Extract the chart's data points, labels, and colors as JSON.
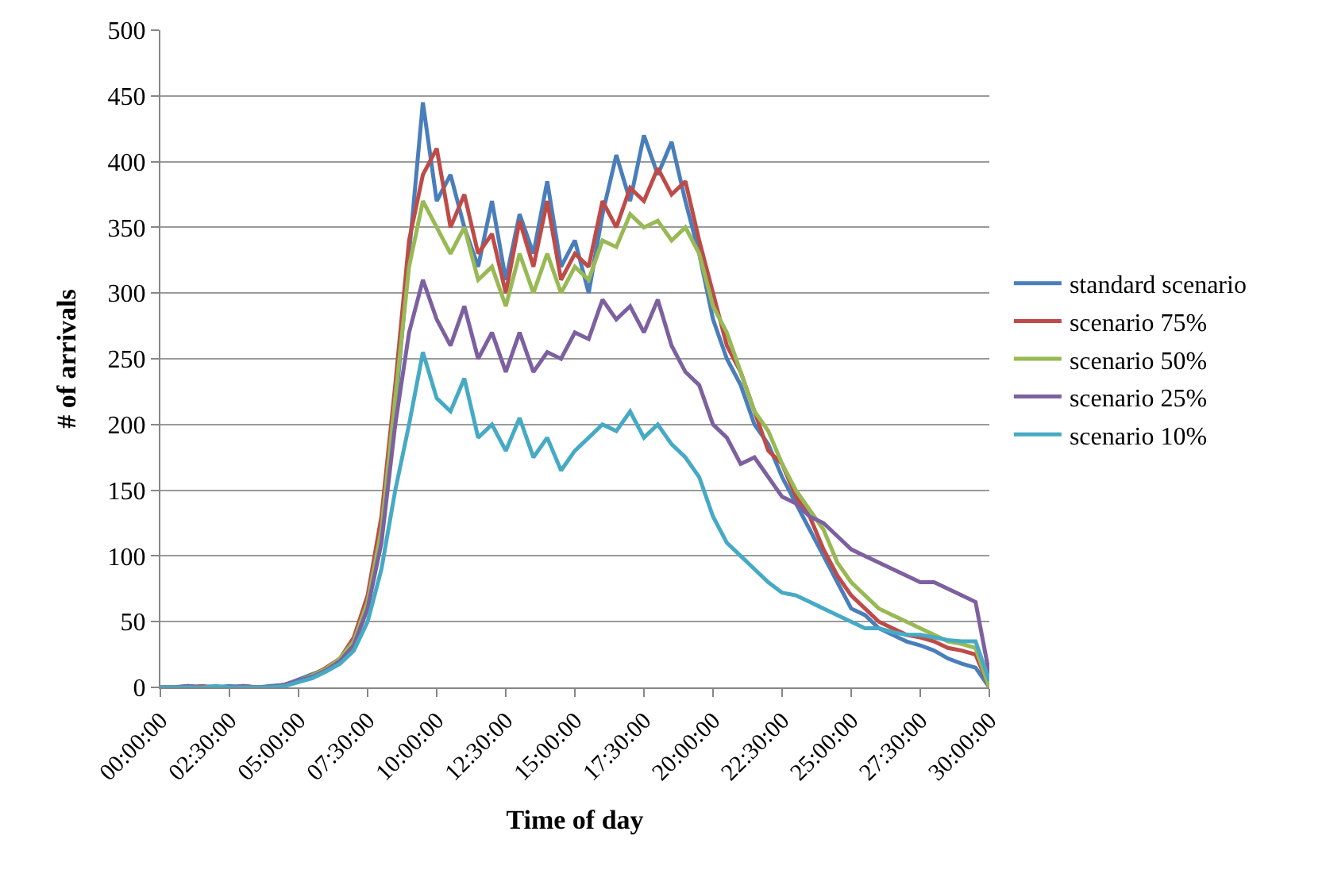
{
  "chart_data": {
    "type": "line",
    "xlabel": "Time of day",
    "ylabel": "# of arrivals",
    "x": [
      0,
      0.5,
      1,
      1.5,
      2,
      2.5,
      3,
      3.5,
      4,
      4.5,
      5,
      5.5,
      6,
      6.5,
      7,
      7.5,
      8,
      8.5,
      9,
      9.5,
      10,
      10.5,
      11,
      11.5,
      12,
      12.5,
      13,
      13.5,
      14,
      14.5,
      15,
      15.5,
      16,
      16.5,
      17,
      17.5,
      18,
      18.5,
      19,
      19.5,
      20,
      20.5,
      21,
      21.5,
      22,
      22.5,
      23,
      23.5,
      24,
      24.5,
      25,
      25.5,
      26,
      26.5,
      27,
      27.5,
      28,
      28.5,
      29,
      29.5,
      30
    ],
    "series": [
      {
        "name": "standard scenario",
        "color": "#4a7ebb",
        "values": [
          0,
          0,
          1,
          0,
          0,
          1,
          0,
          0,
          1,
          2,
          6,
          10,
          14,
          20,
          35,
          60,
          120,
          210,
          330,
          445,
          370,
          390,
          350,
          320,
          370,
          310,
          360,
          330,
          385,
          320,
          340,
          300,
          360,
          405,
          370,
          420,
          390,
          415,
          370,
          330,
          280,
          250,
          230,
          200,
          185,
          160,
          140,
          120,
          100,
          80,
          60,
          55,
          45,
          40,
          35,
          32,
          28,
          22,
          18,
          15,
          0
        ]
      },
      {
        "name": "scenario 75%",
        "color": "#be4b48",
        "values": [
          0,
          0,
          0,
          1,
          0,
          0,
          1,
          0,
          0,
          2,
          5,
          9,
          15,
          22,
          38,
          70,
          130,
          230,
          340,
          390,
          410,
          350,
          375,
          330,
          345,
          300,
          355,
          320,
          370,
          310,
          330,
          320,
          370,
          350,
          380,
          370,
          395,
          375,
          385,
          340,
          300,
          260,
          240,
          210,
          180,
          170,
          145,
          130,
          105,
          85,
          70,
          60,
          50,
          45,
          40,
          38,
          35,
          30,
          28,
          25,
          0
        ]
      },
      {
        "name": "scenario 50%",
        "color": "#98b954",
        "values": [
          null,
          null,
          null,
          null,
          null,
          null,
          null,
          null,
          null,
          2,
          5,
          9,
          14,
          22,
          35,
          65,
          120,
          220,
          320,
          370,
          350,
          330,
          350,
          310,
          320,
          290,
          330,
          300,
          330,
          300,
          320,
          310,
          340,
          335,
          360,
          350,
          355,
          340,
          350,
          330,
          290,
          270,
          240,
          210,
          195,
          170,
          150,
          135,
          120,
          95,
          80,
          70,
          60,
          55,
          50,
          45,
          40,
          35,
          33,
          30,
          0
        ]
      },
      {
        "name": "scenario 25%",
        "color": "#7d60a0",
        "values": [
          0,
          0,
          1,
          0,
          0,
          0,
          1,
          0,
          0,
          2,
          5,
          8,
          13,
          20,
          32,
          60,
          110,
          200,
          270,
          310,
          280,
          260,
          290,
          250,
          270,
          240,
          270,
          240,
          255,
          250,
          270,
          265,
          295,
          280,
          290,
          270,
          295,
          260,
          240,
          230,
          200,
          190,
          170,
          175,
          160,
          145,
          140,
          130,
          125,
          115,
          105,
          100,
          95,
          90,
          85,
          80,
          80,
          75,
          70,
          65,
          10
        ]
      },
      {
        "name": "scenario 10%",
        "color": "#46aac5",
        "values": [
          0,
          0,
          0,
          0,
          1,
          0,
          0,
          0,
          0,
          1,
          4,
          7,
          12,
          18,
          28,
          50,
          90,
          150,
          200,
          255,
          220,
          210,
          235,
          190,
          200,
          180,
          205,
          175,
          190,
          165,
          180,
          190,
          200,
          195,
          210,
          190,
          200,
          185,
          175,
          160,
          130,
          110,
          100,
          90,
          80,
          72,
          70,
          65,
          60,
          55,
          50,
          45,
          45,
          42,
          40,
          40,
          38,
          36,
          35,
          35,
          5
        ]
      }
    ],
    "xlim": [
      0,
      30
    ],
    "xticks": [
      {
        "value": 0,
        "label": "00:00:00"
      },
      {
        "value": 2.5,
        "label": "02:30:00"
      },
      {
        "value": 5,
        "label": "05:00:00"
      },
      {
        "value": 7.5,
        "label": "07:30:00"
      },
      {
        "value": 10,
        "label": "10:00:00"
      },
      {
        "value": 12.5,
        "label": "12:30:00"
      },
      {
        "value": 15,
        "label": "15:00:00"
      },
      {
        "value": 17.5,
        "label": "17:30:00"
      },
      {
        "value": 20,
        "label": "20:00:00"
      },
      {
        "value": 22.5,
        "label": "22:30:00"
      },
      {
        "value": 25,
        "label": "25:00:00"
      },
      {
        "value": 27.5,
        "label": "27:30:00"
      },
      {
        "value": 30,
        "label": "30:00:00"
      }
    ],
    "ylim": [
      0,
      500
    ],
    "yticks": [
      0,
      50,
      100,
      150,
      200,
      250,
      300,
      350,
      400,
      450,
      500
    ],
    "grid": "y",
    "legend": "right",
    "marker": "none",
    "line_style": "solid"
  }
}
